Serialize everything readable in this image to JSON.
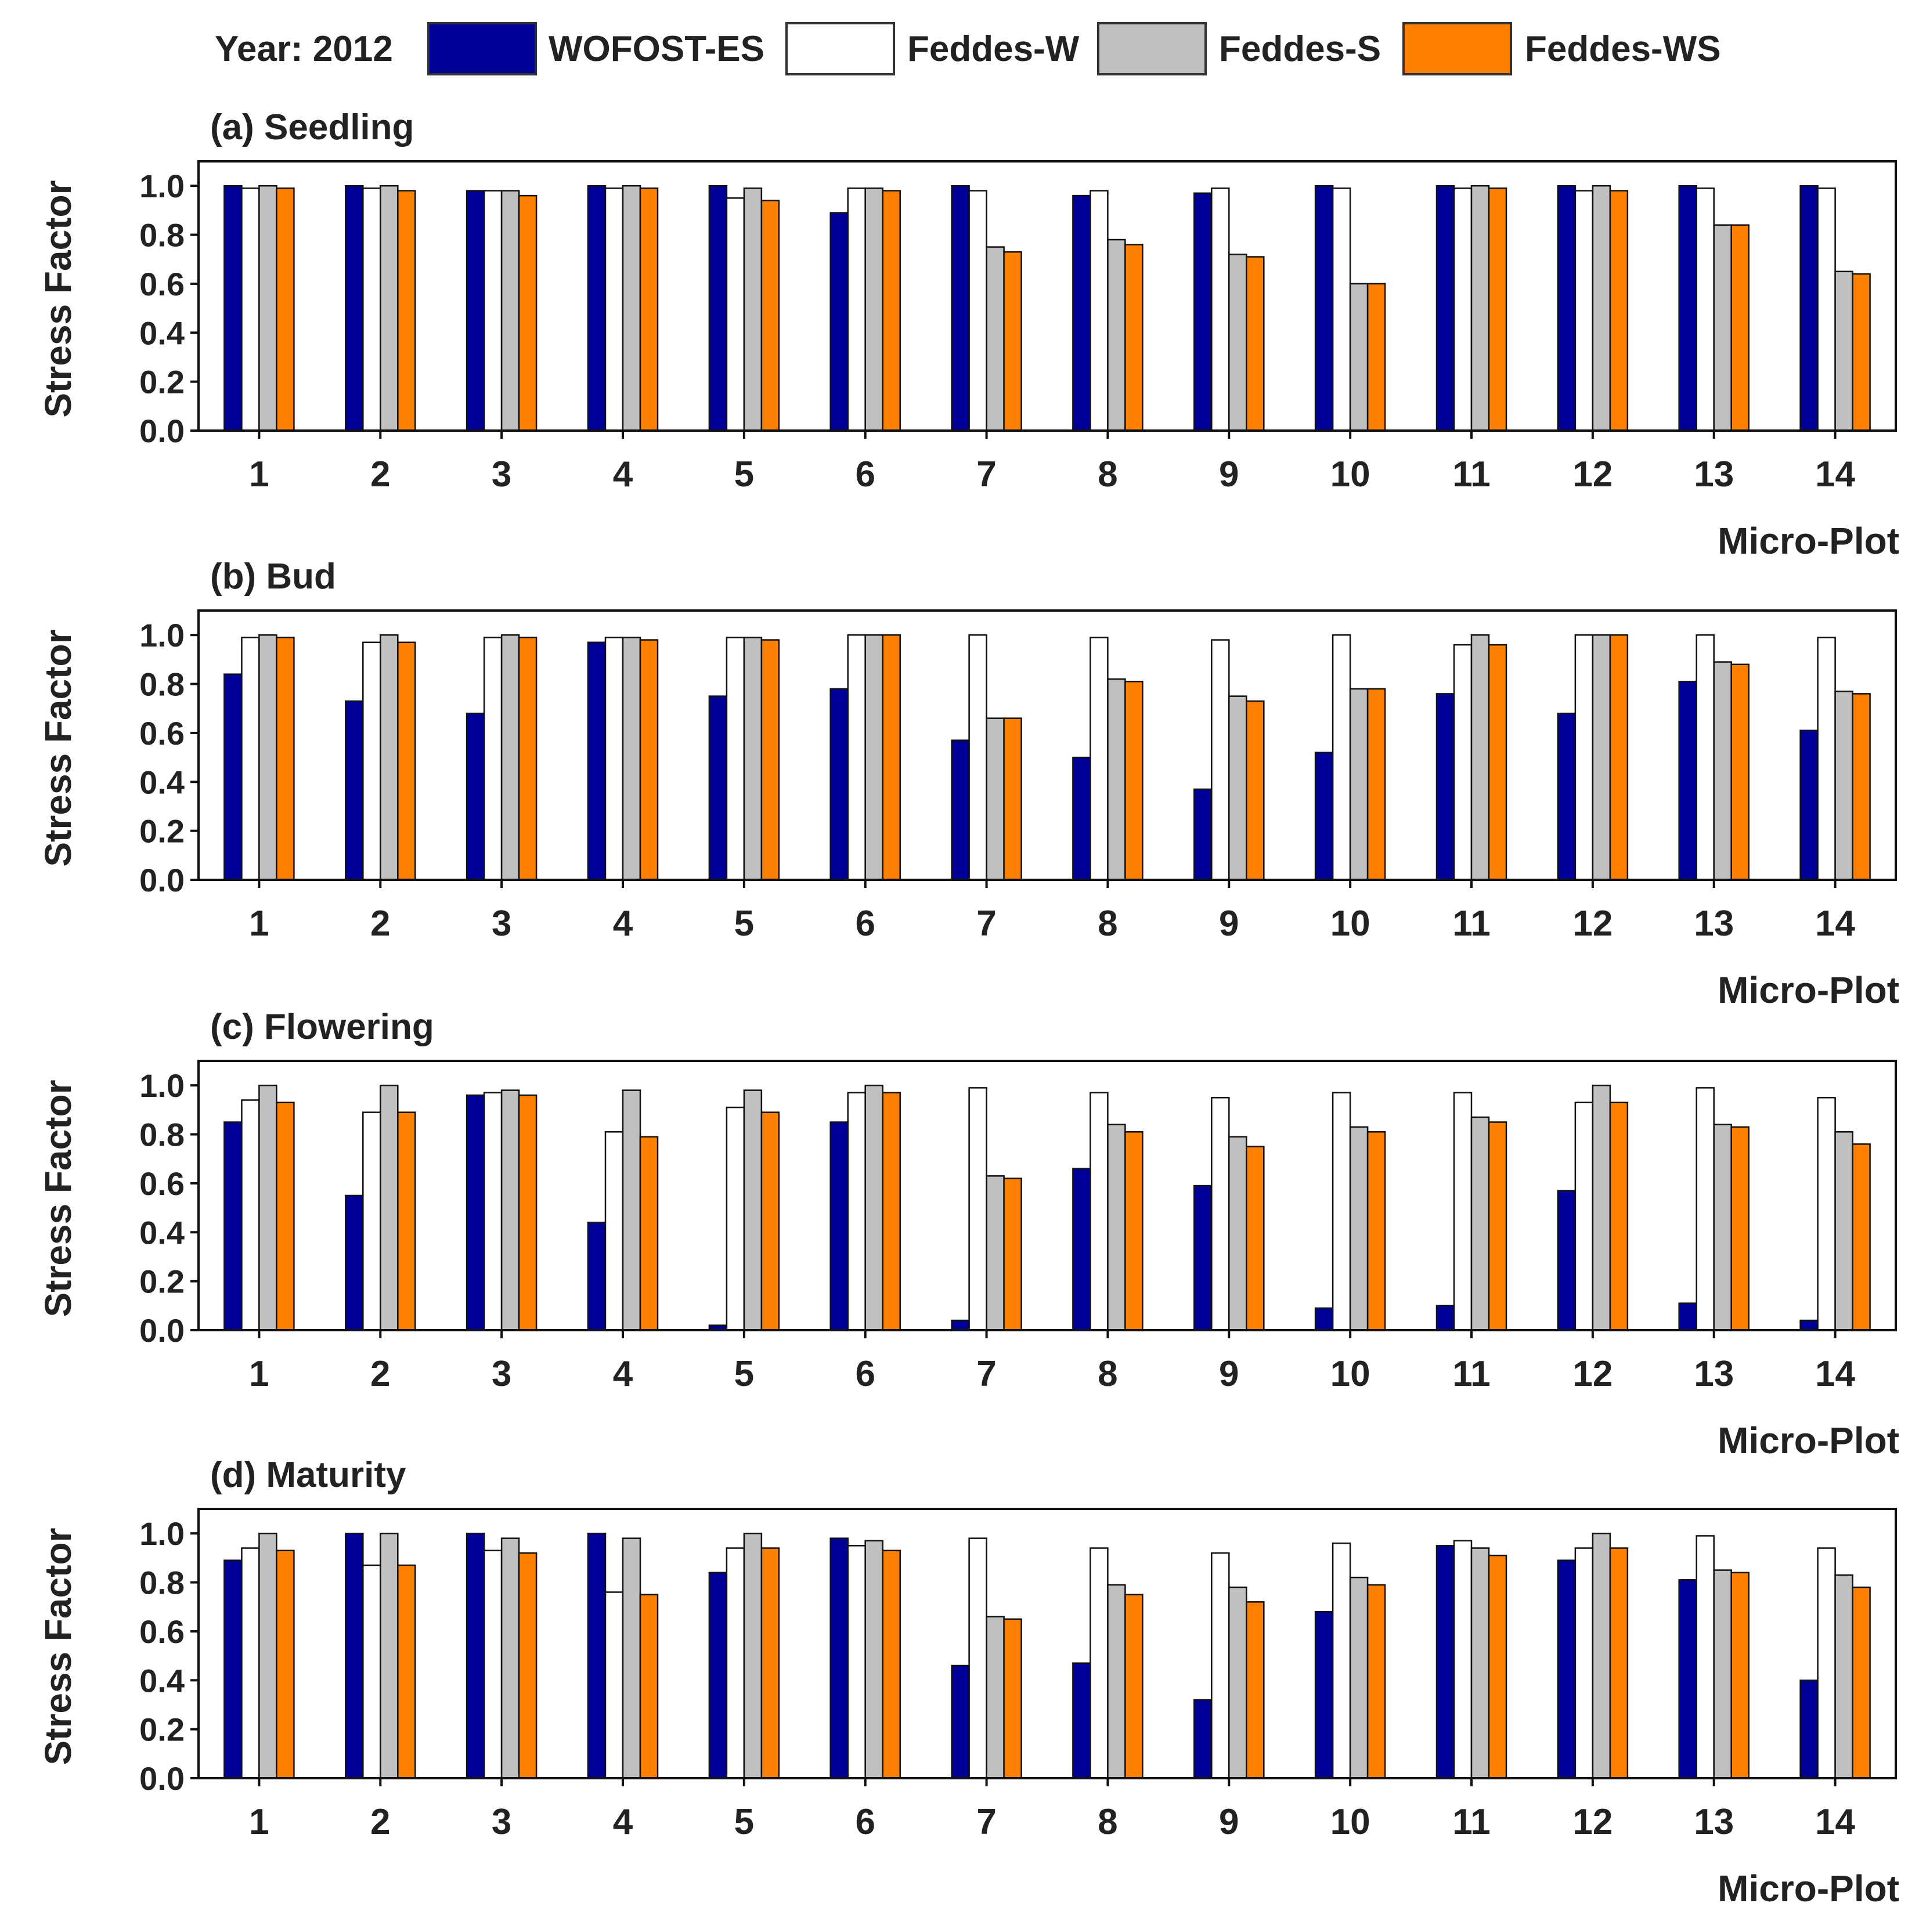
{
  "legend": {
    "prefix": "Year: 2012",
    "items": [
      {
        "label": "WOFOST-ES",
        "color": "#000099"
      },
      {
        "label": "Feddes-W",
        "color": "#ffffff"
      },
      {
        "label": "Feddes-S",
        "color": "#c0c0c0"
      },
      {
        "label": "Feddes-WS",
        "color": "#ff8000"
      }
    ]
  },
  "chart_data": [
    {
      "type": "bar",
      "title": "(a) Seedling",
      "xlabel": "Micro-Plot",
      "ylabel": "Stress Factor",
      "ylim": [
        0,
        1.1
      ],
      "yticks": [
        "0.0",
        "0.2",
        "0.4",
        "0.6",
        "0.8",
        "1.0"
      ],
      "categories": [
        "1",
        "2",
        "3",
        "4",
        "5",
        "6",
        "7",
        "8",
        "9",
        "10",
        "11",
        "12",
        "13",
        "14"
      ],
      "series": [
        {
          "name": "WOFOST-ES",
          "values": [
            1.0,
            1.0,
            0.98,
            1.0,
            1.0,
            0.89,
            1.0,
            0.96,
            0.97,
            1.0,
            1.0,
            1.0,
            1.0,
            1.0
          ]
        },
        {
          "name": "Feddes-W",
          "values": [
            0.99,
            0.99,
            0.98,
            0.99,
            0.95,
            0.99,
            0.98,
            0.98,
            0.99,
            0.99,
            0.99,
            0.98,
            0.99,
            0.99
          ]
        },
        {
          "name": "Feddes-S",
          "values": [
            1.0,
            1.0,
            0.98,
            1.0,
            0.99,
            0.99,
            0.75,
            0.78,
            0.72,
            0.6,
            1.0,
            1.0,
            0.84,
            0.65
          ]
        },
        {
          "name": "Feddes-WS",
          "values": [
            0.99,
            0.98,
            0.96,
            0.99,
            0.94,
            0.98,
            0.73,
            0.76,
            0.71,
            0.6,
            0.99,
            0.98,
            0.84,
            0.64
          ]
        }
      ]
    },
    {
      "type": "bar",
      "title": "(b) Bud",
      "xlabel": "Micro-Plot",
      "ylabel": "Stress Factor",
      "ylim": [
        0,
        1.1
      ],
      "yticks": [
        "0.0",
        "0.2",
        "0.4",
        "0.6",
        "0.8",
        "1.0"
      ],
      "categories": [
        "1",
        "2",
        "3",
        "4",
        "5",
        "6",
        "7",
        "8",
        "9",
        "10",
        "11",
        "12",
        "13",
        "14"
      ],
      "series": [
        {
          "name": "WOFOST-ES",
          "values": [
            0.84,
            0.73,
            0.68,
            0.97,
            0.75,
            0.78,
            0.57,
            0.5,
            0.37,
            0.52,
            0.76,
            0.68,
            0.81,
            0.61
          ]
        },
        {
          "name": "Feddes-W",
          "values": [
            0.99,
            0.97,
            0.99,
            0.99,
            0.99,
            1.0,
            1.0,
            0.99,
            0.98,
            1.0,
            0.96,
            1.0,
            1.0,
            0.99
          ]
        },
        {
          "name": "Feddes-S",
          "values": [
            1.0,
            1.0,
            1.0,
            0.99,
            0.99,
            1.0,
            0.66,
            0.82,
            0.75,
            0.78,
            1.0,
            1.0,
            0.89,
            0.77
          ]
        },
        {
          "name": "Feddes-WS",
          "values": [
            0.99,
            0.97,
            0.99,
            0.98,
            0.98,
            1.0,
            0.66,
            0.81,
            0.73,
            0.78,
            0.96,
            1.0,
            0.88,
            0.76
          ]
        }
      ]
    },
    {
      "type": "bar",
      "title": "(c) Flowering",
      "xlabel": "Micro-Plot",
      "ylabel": "Stress Factor",
      "ylim": [
        0,
        1.1
      ],
      "yticks": [
        "0.0",
        "0.2",
        "0.4",
        "0.6",
        "0.8",
        "1.0"
      ],
      "categories": [
        "1",
        "2",
        "3",
        "4",
        "5",
        "6",
        "7",
        "8",
        "9",
        "10",
        "11",
        "12",
        "13",
        "14"
      ],
      "series": [
        {
          "name": "WOFOST-ES",
          "values": [
            0.85,
            0.55,
            0.96,
            0.44,
            0.02,
            0.85,
            0.04,
            0.66,
            0.59,
            0.09,
            0.1,
            0.57,
            0.11,
            0.04
          ]
        },
        {
          "name": "Feddes-W",
          "values": [
            0.94,
            0.89,
            0.97,
            0.81,
            0.91,
            0.97,
            0.99,
            0.97,
            0.95,
            0.97,
            0.97,
            0.93,
            0.99,
            0.95
          ]
        },
        {
          "name": "Feddes-S",
          "values": [
            1.0,
            1.0,
            0.98,
            0.98,
            0.98,
            1.0,
            0.63,
            0.84,
            0.79,
            0.83,
            0.87,
            1.0,
            0.84,
            0.81
          ]
        },
        {
          "name": "Feddes-WS",
          "values": [
            0.93,
            0.89,
            0.96,
            0.79,
            0.89,
            0.97,
            0.62,
            0.81,
            0.75,
            0.81,
            0.85,
            0.93,
            0.83,
            0.76
          ]
        }
      ]
    },
    {
      "type": "bar",
      "title": "(d) Maturity",
      "xlabel": "Micro-Plot",
      "ylabel": "Stress Factor",
      "ylim": [
        0,
        1.1
      ],
      "yticks": [
        "0.0",
        "0.2",
        "0.4",
        "0.6",
        "0.8",
        "1.0"
      ],
      "categories": [
        "1",
        "2",
        "3",
        "4",
        "5",
        "6",
        "7",
        "8",
        "9",
        "10",
        "11",
        "12",
        "13",
        "14"
      ],
      "series": [
        {
          "name": "WOFOST-ES",
          "values": [
            0.89,
            1.0,
            1.0,
            1.0,
            0.84,
            0.98,
            0.46,
            0.47,
            0.32,
            0.68,
            0.95,
            0.89,
            0.81,
            0.4
          ]
        },
        {
          "name": "Feddes-W",
          "values": [
            0.94,
            0.87,
            0.93,
            0.76,
            0.94,
            0.95,
            0.98,
            0.94,
            0.92,
            0.96,
            0.97,
            0.94,
            0.99,
            0.94
          ]
        },
        {
          "name": "Feddes-S",
          "values": [
            1.0,
            1.0,
            0.98,
            0.98,
            1.0,
            0.97,
            0.66,
            0.79,
            0.78,
            0.82,
            0.94,
            1.0,
            0.85,
            0.83
          ]
        },
        {
          "name": "Feddes-WS",
          "values": [
            0.93,
            0.87,
            0.92,
            0.75,
            0.94,
            0.93,
            0.65,
            0.75,
            0.72,
            0.79,
            0.91,
            0.94,
            0.84,
            0.78
          ]
        }
      ]
    }
  ]
}
